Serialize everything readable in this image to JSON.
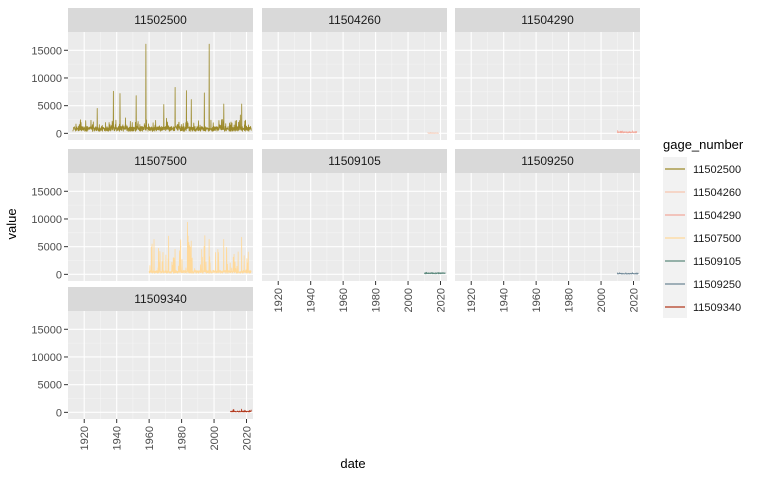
{
  "chart_data": {
    "type": "line",
    "title": "",
    "xlabel": "date",
    "ylabel": "value",
    "xlim": [
      1910,
      2024
    ],
    "ylim": [
      -1200,
      18300
    ],
    "x_ticks": [
      "1920",
      "1940",
      "1960",
      "1980",
      "2000",
      "2020"
    ],
    "y_ticks": [
      "0",
      "5000",
      "10000",
      "15000"
    ],
    "grid": true,
    "legend": {
      "title": "gage_number",
      "placement": "right"
    },
    "series": [
      {
        "name": "11502500",
        "color": "#9C8A2B",
        "start": 1913,
        "end": 2023,
        "base": 900,
        "amp": 1400,
        "peaks": [
          [
            1928,
            4500
          ],
          [
            1938,
            7600
          ],
          [
            1942,
            7200
          ],
          [
            1952,
            6800
          ],
          [
            1958,
            16100
          ],
          [
            1969,
            5200
          ],
          [
            1976,
            8300
          ],
          [
            1983,
            7700
          ],
          [
            1986,
            6100
          ],
          [
            1994,
            7300
          ],
          [
            1997,
            16100
          ],
          [
            2006,
            5300
          ],
          [
            2017,
            5300
          ]
        ]
      },
      {
        "name": "11504260",
        "color": "#F7C5AE",
        "start": 2012,
        "end": 2019,
        "base": 60,
        "amp": 40,
        "peaks": []
      },
      {
        "name": "11504290",
        "color": "#F3A99B",
        "start": 2010,
        "end": 2022,
        "base": 200,
        "amp": 320,
        "peaks": []
      },
      {
        "name": "11507500",
        "color": "#FFD99A",
        "start": 1960,
        "end": 2023,
        "base": 500,
        "amp": 4600,
        "peaks": [
          [
            1963,
            6300
          ],
          [
            1972,
            6900
          ],
          [
            1984,
            6900
          ],
          [
            1997,
            6300
          ],
          [
            2006,
            6300
          ],
          [
            2017,
            6700
          ]
        ]
      },
      {
        "name": "11509105",
        "color": "#5E8A7E",
        "start": 2010,
        "end": 2023,
        "base": 220,
        "amp": 90,
        "peaks": []
      },
      {
        "name": "11509250",
        "color": "#6E8796",
        "start": 2010,
        "end": 2023,
        "base": 120,
        "amp": 180,
        "peaks": []
      },
      {
        "name": "11509340",
        "color": "#B23A1E",
        "start": 2010,
        "end": 2023,
        "base": 180,
        "amp": 420,
        "peaks": []
      }
    ]
  }
}
